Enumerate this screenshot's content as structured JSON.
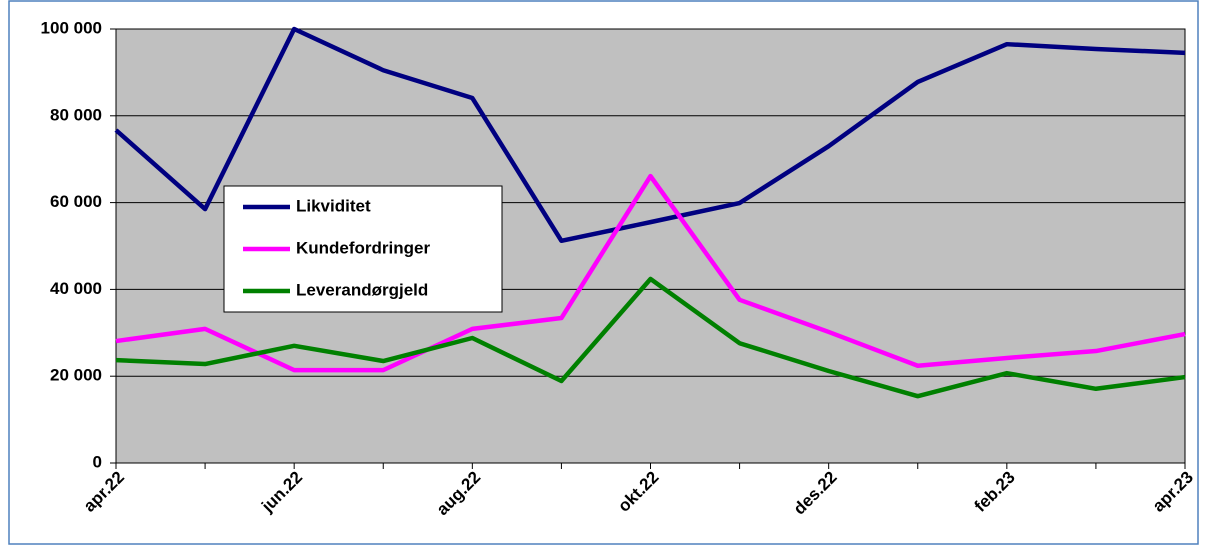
{
  "chart_data": {
    "type": "line",
    "categories": [
      "apr.22",
      null,
      "jun.22",
      null,
      "aug.22",
      null,
      "okt.22",
      null,
      "des.22",
      null,
      "feb.23",
      null,
      "apr.23"
    ],
    "series": [
      {
        "name": "Likviditet",
        "color": "#000080",
        "values": [
          76700,
          58500,
          100000,
          90500,
          84100,
          51200,
          55500,
          59900,
          73000,
          87800,
          96500,
          95400,
          94500
        ]
      },
      {
        "name": "Kundefordringer",
        "color": "#ff00ff",
        "values": [
          28100,
          30900,
          21400,
          21400,
          30900,
          33400,
          66100,
          37600,
          30200,
          22400,
          24200,
          25800,
          29700
        ]
      },
      {
        "name": "Leverandørgjeld",
        "color": "#008000",
        "values": [
          23700,
          22800,
          27000,
          23500,
          28800,
          18900,
          42400,
          27600,
          21200,
          15400,
          20700,
          17100,
          19800
        ]
      }
    ],
    "ylim": [
      0,
      100000
    ],
    "yticks": [
      0,
      {
        "value": 20000,
        "label": "20 000"
      },
      {
        "value": 40000,
        "label": "40 000"
      },
      {
        "value": 60000,
        "label": "60 000"
      },
      {
        "value": 80000,
        "label": "80 000"
      },
      {
        "value": 100000,
        "label": "100 000"
      }
    ],
    "grid": true,
    "plot_background": "#c0c0c0",
    "legend_position": "left"
  }
}
